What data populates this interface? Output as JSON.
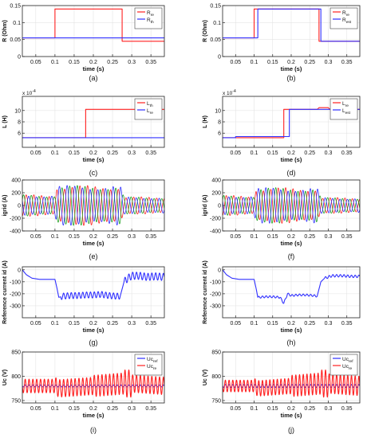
{
  "figure": {
    "background": "#ffffff"
  },
  "chart_data": [
    {
      "id": "a",
      "caption": "(a)",
      "type": "line",
      "ylabel": "R (Ohm)",
      "xlabel": "time (s)",
      "xlim": [
        0.015,
        0.385
      ],
      "ylim": [
        0,
        0.15
      ],
      "xticks": [
        0.05,
        0.1,
        0.15,
        0.2,
        0.25,
        0.3,
        0.35
      ],
      "xtick_labels": [
        "0.05",
        "0.1",
        "0.15",
        "0.2",
        "0.25",
        "0.3",
        "0.35"
      ],
      "yticks": [
        0,
        0.05,
        0.1,
        0.15
      ],
      "ytick_labels": [
        "0",
        "0.05",
        "0.1",
        "0.15"
      ],
      "exponent": "",
      "grid": true,
      "legend_position": "top-right",
      "legend": [
        {
          "main": "R",
          "sub": "re"
        },
        {
          "main": "R",
          "sub": "th"
        }
      ],
      "series": [
        {
          "color": "#ff2020",
          "x": [
            0.015,
            0.1,
            0.1,
            0.275,
            0.275,
            0.385
          ],
          "y": [
            0.055,
            0.055,
            0.14,
            0.14,
            0.045,
            0.045
          ]
        },
        {
          "color": "#3030ff",
          "x": [
            0.015,
            0.275,
            0.275,
            0.385
          ],
          "y": [
            0.055,
            0.055,
            0.055,
            0.055
          ]
        }
      ]
    },
    {
      "id": "b",
      "caption": "(b)",
      "type": "line",
      "ylabel": "R (Ohm)",
      "xlabel": "time (s)",
      "xlim": [
        0.015,
        0.385
      ],
      "ylim": [
        0,
        0.15
      ],
      "xticks": [
        0.05,
        0.1,
        0.15,
        0.2,
        0.25,
        0.3,
        0.35
      ],
      "xtick_labels": [
        "0.05",
        "0.1",
        "0.15",
        "0.2",
        "0.25",
        "0.3",
        "0.35"
      ],
      "yticks": [
        0,
        0.05,
        0.1,
        0.15
      ],
      "ytick_labels": [
        "0",
        "0.05",
        "0.1",
        "0.15"
      ],
      "exponent": "",
      "grid": true,
      "legend_position": "top-right",
      "legend": [
        {
          "main": "R",
          "sub": "re"
        },
        {
          "main": "R",
          "sub": "est"
        }
      ],
      "series": [
        {
          "color": "#ff2020",
          "x": [
            0.015,
            0.1,
            0.1,
            0.275,
            0.275,
            0.385
          ],
          "y": [
            0.055,
            0.055,
            0.14,
            0.14,
            0.045,
            0.045
          ]
        },
        {
          "color": "#3030ff",
          "x": [
            0.015,
            0.11,
            0.11,
            0.28,
            0.28,
            0.385
          ],
          "y": [
            0.055,
            0.055,
            0.14,
            0.14,
            0.045,
            0.045
          ]
        }
      ]
    },
    {
      "id": "c",
      "caption": "(c)",
      "type": "line",
      "ylabel": "L (H)",
      "xlabel": "time (s)",
      "xlim": [
        0.015,
        0.385
      ],
      "ylim": [
        3.5,
        12.5
      ],
      "xticks": [
        0.05,
        0.1,
        0.15,
        0.2,
        0.25,
        0.3,
        0.35
      ],
      "xtick_labels": [
        "0.05",
        "0.1",
        "0.15",
        "0.2",
        "0.25",
        "0.3",
        "0.35"
      ],
      "yticks": [
        6,
        8,
        10
      ],
      "ytick_labels": [
        "6",
        "8",
        "10"
      ],
      "exponent": "x 10",
      "exponent_power": "-4",
      "grid": true,
      "legend_position": "top-right",
      "legend": [
        {
          "main": "L",
          "sub": "th"
        },
        {
          "main": "L",
          "sub": "re"
        }
      ],
      "series": [
        {
          "color": "#ff2020",
          "x": [
            0.015,
            0.18,
            0.18,
            0.385
          ],
          "y": [
            5.2,
            5.2,
            10.2,
            10.2
          ]
        },
        {
          "color": "#3030ff",
          "x": [
            0.015,
            0.385
          ],
          "y": [
            5.2,
            5.2
          ]
        }
      ]
    },
    {
      "id": "d",
      "caption": "(d)",
      "type": "line",
      "ylabel": "L (H)",
      "xlabel": "time (s)",
      "xlim": [
        0.015,
        0.385
      ],
      "ylim": [
        3.5,
        12.5
      ],
      "xticks": [
        0.05,
        0.1,
        0.15,
        0.2,
        0.25,
        0.3,
        0.35
      ],
      "xtick_labels": [
        "0.05",
        "0.1",
        "0.15",
        "0.2",
        "0.25",
        "0.3",
        "0.35"
      ],
      "yticks": [
        6,
        8,
        10
      ],
      "ytick_labels": [
        "6",
        "8",
        "10"
      ],
      "exponent": "x 10",
      "exponent_power": "-4",
      "grid": true,
      "legend_position": "top-right",
      "legend": [
        {
          "main": "L",
          "sub": "re"
        },
        {
          "main": "L",
          "sub": "est"
        }
      ],
      "series": [
        {
          "color": "#ff2020",
          "x": [
            0.015,
            0.18,
            0.18,
            0.27,
            0.275,
            0.3,
            0.305,
            0.385
          ],
          "y": [
            5.2,
            5.2,
            10.2,
            10.2,
            10.5,
            10.5,
            10.2,
            10.2
          ]
        },
        {
          "color": "#3030ff",
          "x": [
            0.015,
            0.05,
            0.05,
            0.195,
            0.195,
            0.385
          ],
          "y": [
            5.2,
            5.2,
            5.4,
            5.4,
            10.2,
            10.2
          ]
        }
      ]
    },
    {
      "id": "e",
      "caption": "(e)",
      "type": "line",
      "ylabel": "igrid (A)",
      "xlabel": "time (s)",
      "xlim": [
        0.015,
        0.385
      ],
      "ylim": [
        -400,
        400
      ],
      "xticks": [
        0.05,
        0.1,
        0.15,
        0.2,
        0.25,
        0.3,
        0.35
      ],
      "xtick_labels": [
        "0.05",
        "0.1",
        "0.15",
        "0.2",
        "0.25",
        "0.3",
        "0.35"
      ],
      "yticks": [
        -400,
        -200,
        0,
        200,
        400
      ],
      "ytick_labels": [
        "-400",
        "-200",
        "0",
        "200",
        "400"
      ],
      "exponent": "",
      "grid": true,
      "legend": [],
      "series": [
        {
          "color": "#ff2020",
          "name": "",
          "wave": "three-phase",
          "phase_deg": 0
        },
        {
          "color": "#20a020",
          "name": "",
          "wave": "three-phase",
          "phase_deg": 120
        },
        {
          "color": "#3030ff",
          "name": "",
          "wave": "three-phase",
          "phase_deg": 240
        }
      ],
      "envelope": {
        "x": [
          0.015,
          0.1,
          0.105,
          0.27,
          0.28,
          0.385
        ],
        "amp": [
          150,
          150,
          280,
          280,
          120,
          120
        ]
      }
    },
    {
      "id": "f",
      "caption": "(f)",
      "type": "line",
      "ylabel": "igrid (A)",
      "xlabel": "time (s)",
      "xlim": [
        0.015,
        0.385
      ],
      "ylim": [
        -400,
        400
      ],
      "xticks": [
        0.05,
        0.1,
        0.15,
        0.2,
        0.25,
        0.3,
        0.35
      ],
      "xtick_labels": [
        "0.05",
        "0.1",
        "0.15",
        "0.2",
        "0.25",
        "0.3",
        "0.35"
      ],
      "yticks": [
        -400,
        -200,
        0,
        200,
        400
      ],
      "ytick_labels": [
        "-400",
        "-200",
        "0",
        "200",
        "400"
      ],
      "exponent": "",
      "grid": true,
      "legend": [],
      "series": [
        {
          "color": "#ff2020",
          "name": "",
          "wave": "three-phase",
          "phase_deg": 0
        },
        {
          "color": "#20a020",
          "name": "",
          "wave": "three-phase",
          "phase_deg": 120
        },
        {
          "color": "#3030ff",
          "name": "",
          "wave": "three-phase",
          "phase_deg": 240
        }
      ],
      "envelope": {
        "x": [
          0.015,
          0.1,
          0.105,
          0.27,
          0.28,
          0.385
        ],
        "amp": [
          140,
          140,
          250,
          250,
          110,
          110
        ]
      }
    },
    {
      "id": "g",
      "caption": "(g)",
      "type": "line",
      "ylabel": "Reference current id (A)",
      "xlabel": "time (s)",
      "xlim": [
        0.015,
        0.385
      ],
      "ylim": [
        -400,
        25
      ],
      "xticks": [
        0.05,
        0.1,
        0.15,
        0.2,
        0.25,
        0.3,
        0.35
      ],
      "xtick_labels": [
        "0.05",
        "0.1",
        "0.15",
        "0.2",
        "0.25",
        "0.3",
        "0.35"
      ],
      "yticks": [
        -300,
        -200,
        -100,
        0
      ],
      "ytick_labels": [
        "-300",
        "-200",
        "-100",
        "0"
      ],
      "exponent": "",
      "grid": true,
      "legend": [],
      "series": [
        {
          "color": "#3030ff",
          "name": "",
          "x": [
            0.015,
            0.025,
            0.04,
            0.06,
            0.08,
            0.1,
            0.105,
            0.11,
            0.12,
            0.14,
            0.16,
            0.18,
            0.2,
            0.22,
            0.24,
            0.26,
            0.27,
            0.28,
            0.29,
            0.3,
            0.32,
            0.34,
            0.36,
            0.385
          ],
          "y": [
            0,
            -40,
            -70,
            -80,
            -80,
            -80,
            -150,
            -230,
            -220,
            -215,
            -215,
            -210,
            -210,
            -205,
            -215,
            -220,
            -220,
            -100,
            -70,
            -50,
            -50,
            -60,
            -55,
            -60
          ],
          "ripple": [
            [
              0.115,
              0.27,
              25,
              0.01
            ],
            [
              0.28,
              0.385,
              30,
              0.01
            ]
          ]
        }
      ]
    },
    {
      "id": "h",
      "caption": "(h)",
      "type": "line",
      "ylabel": "Reference current id (A)",
      "xlabel": "time (s)",
      "xlim": [
        0.015,
        0.385
      ],
      "ylim": [
        -400,
        25
      ],
      "xticks": [
        0.05,
        0.1,
        0.15,
        0.2,
        0.25,
        0.3,
        0.35
      ],
      "xtick_labels": [
        "0.05",
        "0.1",
        "0.15",
        "0.2",
        "0.25",
        "0.3",
        "0.35"
      ],
      "yticks": [
        -300,
        -200,
        -100,
        0
      ],
      "ytick_labels": [
        "-300",
        "-200",
        "-100",
        "0"
      ],
      "exponent": "",
      "grid": true,
      "legend": [],
      "series": [
        {
          "color": "#3030ff",
          "name": "",
          "x": [
            0.015,
            0.025,
            0.04,
            0.06,
            0.08,
            0.1,
            0.105,
            0.11,
            0.13,
            0.15,
            0.17,
            0.18,
            0.185,
            0.19,
            0.2,
            0.22,
            0.24,
            0.26,
            0.27,
            0.28,
            0.29,
            0.31,
            0.34,
            0.36,
            0.385
          ],
          "y": [
            0,
            -40,
            -70,
            -80,
            -80,
            -80,
            -150,
            -230,
            -225,
            -225,
            -230,
            -280,
            -240,
            -200,
            -215,
            -210,
            -210,
            -215,
            -220,
            -100,
            -70,
            -50,
            -50,
            -55,
            -55
          ],
          "ripple": [
            [
              0.11,
              0.27,
              8,
              0.01
            ],
            [
              0.29,
              0.385,
              10,
              0.01
            ]
          ]
        }
      ]
    },
    {
      "id": "i",
      "caption": "(i)",
      "type": "line",
      "ylabel": "Uc (V)",
      "xlabel": "time (s)",
      "xlim": [
        0.015,
        0.385
      ],
      "ylim": [
        745,
        850
      ],
      "xticks": [
        0.05,
        0.1,
        0.15,
        0.2,
        0.25,
        0.3,
        0.35
      ],
      "xtick_labels": [
        "0.05",
        "0.1",
        "0.15",
        "0.2",
        "0.25",
        "0.3",
        "0.35"
      ],
      "yticks": [
        750,
        800,
        850
      ],
      "ytick_labels": [
        "750",
        "800",
        "850"
      ],
      "exponent": "",
      "grid": true,
      "legend_position": "top-right",
      "legend": [
        {
          "main": "Uc",
          "sub": "ref"
        },
        {
          "main": "Uc",
          "sub": "re"
        }
      ],
      "series": [
        {
          "color": "#3030ff",
          "x": [
            0.015,
            0.385
          ],
          "y": [
            780,
            780
          ],
          "ripple": [
            [
              0.015,
              0.385,
              2,
              0.01
            ]
          ]
        },
        {
          "color": "#ff2020",
          "x": [
            0.015,
            0.1,
            0.11,
            0.2,
            0.28,
            0.3,
            0.385
          ],
          "y": [
            780,
            780,
            775,
            780,
            785,
            785,
            780
          ],
          "ripple": [
            [
              0.015,
              0.1,
              14,
              0.01
            ],
            [
              0.1,
              0.2,
              18,
              0.01
            ],
            [
              0.2,
              0.28,
              22,
              0.01
            ],
            [
              0.28,
              0.3,
              28,
              0.01
            ],
            [
              0.3,
              0.385,
              18,
              0.01
            ]
          ]
        }
      ]
    },
    {
      "id": "j",
      "caption": "(j)",
      "type": "line",
      "ylabel": "Uc (V)",
      "xlabel": "time (s)",
      "xlim": [
        0.015,
        0.385
      ],
      "ylim": [
        745,
        850
      ],
      "xticks": [
        0.05,
        0.1,
        0.15,
        0.2,
        0.25,
        0.3,
        0.35
      ],
      "xtick_labels": [
        "0.05",
        "0.1",
        "0.15",
        "0.2",
        "0.25",
        "0.3",
        "0.35"
      ],
      "yticks": [
        750,
        800,
        850
      ],
      "ytick_labels": [
        "750",
        "800",
        "850"
      ],
      "exponent": "",
      "grid": true,
      "legend_position": "top-right",
      "legend": [
        {
          "main": "Uc",
          "sub": "ref"
        },
        {
          "main": "Uc",
          "sub": "re"
        }
      ],
      "series": [
        {
          "color": "#3030ff",
          "x": [
            0.015,
            0.385
          ],
          "y": [
            780,
            780
          ],
          "ripple": [
            [
              0.015,
              0.385,
              3,
              0.01
            ]
          ]
        },
        {
          "color": "#ff2020",
          "x": [
            0.015,
            0.1,
            0.11,
            0.2,
            0.28,
            0.3,
            0.385
          ],
          "y": [
            780,
            780,
            775,
            780,
            785,
            785,
            780
          ],
          "ripple": [
            [
              0.015,
              0.1,
              12,
              0.01
            ],
            [
              0.1,
              0.2,
              16,
              0.01
            ],
            [
              0.2,
              0.28,
              22,
              0.01
            ],
            [
              0.28,
              0.3,
              28,
              0.01
            ],
            [
              0.3,
              0.385,
              20,
              0.01
            ]
          ]
        }
      ]
    }
  ]
}
